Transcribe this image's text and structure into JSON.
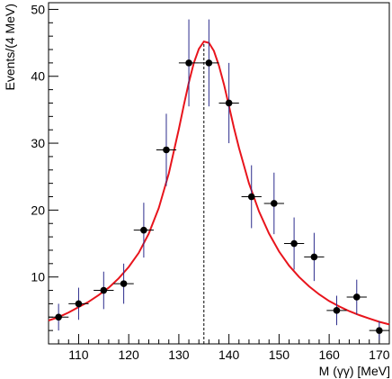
{
  "chart_data": {
    "type": "scatter",
    "xlabel": "M (γγ) [MeV]",
    "ylabel": "Events/(4 MeV)",
    "xlim": [
      104,
      172
    ],
    "ylim": [
      0,
      51
    ],
    "xticks": [
      110,
      120,
      130,
      140,
      150,
      160,
      170
    ],
    "yticks": [
      10,
      20,
      30,
      40,
      50
    ],
    "grid": false,
    "series": [
      {
        "kind": "points_with_errors",
        "x_halfwidth": 2,
        "points": [
          {
            "x": 106,
            "y": 4,
            "yerr": 2
          },
          {
            "x": 110,
            "y": 6,
            "yerr": 2.4
          },
          {
            "x": 115,
            "y": 8,
            "yerr": 2.8
          },
          {
            "x": 119,
            "y": 9,
            "yerr": 3
          },
          {
            "x": 123,
            "y": 17,
            "yerr": 4.1
          },
          {
            "x": 127.5,
            "y": 29,
            "yerr": 5.4
          },
          {
            "x": 132,
            "y": 42,
            "yerr": 6.5
          },
          {
            "x": 136,
            "y": 42,
            "yerr": 6.5
          },
          {
            "x": 140,
            "y": 36,
            "yerr": 6
          },
          {
            "x": 144.5,
            "y": 22,
            "yerr": 4.7
          },
          {
            "x": 149,
            "y": 21,
            "yerr": 4.6
          },
          {
            "x": 153,
            "y": 15,
            "yerr": 3.9
          },
          {
            "x": 157,
            "y": 13,
            "yerr": 3.6
          },
          {
            "x": 161.5,
            "y": 5,
            "yerr": 2.2
          },
          {
            "x": 165.5,
            "y": 7,
            "yerr": 2.6
          },
          {
            "x": 170,
            "y": 2,
            "yerr": 1.4
          }
        ]
      },
      {
        "kind": "fit_curve",
        "color": "#e8141c",
        "x": [
          104,
          106,
          108,
          110,
          112,
          114,
          116,
          118,
          120,
          122,
          124,
          126,
          128,
          130,
          131,
          132,
          133,
          134,
          135,
          136,
          137,
          138,
          139,
          140,
          141,
          142,
          144,
          146,
          148,
          150,
          152,
          154,
          156,
          158,
          160,
          162,
          164,
          166,
          168,
          170,
          172
        ],
        "y": [
          3.5,
          4.0,
          4.7,
          5.5,
          6.3,
          7.3,
          8.4,
          9.8,
          11.5,
          13.6,
          16.5,
          20.3,
          25.5,
          32.1,
          35.7,
          39.1,
          42.0,
          44.1,
          45.2,
          45.0,
          43.8,
          41.6,
          38.8,
          35.6,
          32.3,
          29.3,
          24.0,
          19.8,
          16.5,
          13.8,
          11.7,
          10.0,
          8.6,
          7.4,
          6.4,
          5.6,
          4.9,
          4.3,
          3.8,
          3.3,
          2.9
        ]
      }
    ],
    "reference_line": {
      "x": 135,
      "style": "dashed"
    },
    "colors": {
      "points": "#000000",
      "error_bars": "#2b2b8c",
      "fit": "#e8141c",
      "axes": "#000000"
    }
  }
}
